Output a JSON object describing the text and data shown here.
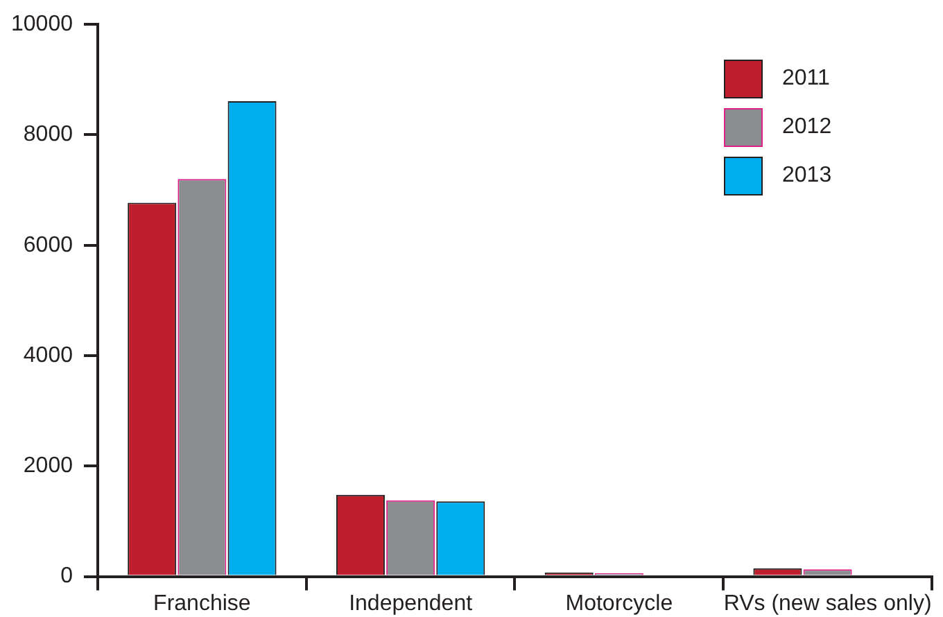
{
  "chart_data": {
    "type": "bar",
    "categories": [
      "Franchise",
      "Independent",
      "Motorcycle",
      "RVs (new sales only)"
    ],
    "series": [
      {
        "name": "2011",
        "color": "#be1e2d",
        "values": [
          6770,
          1480,
          70,
          150
        ]
      },
      {
        "name": "2012",
        "color": "#8c8d90",
        "values": [
          7200,
          1380,
          60,
          130
        ]
      },
      {
        "name": "2013",
        "color": "#00aeef",
        "values": [
          8610,
          1360,
          null,
          null
        ]
      }
    ],
    "ylim": [
      0,
      10000
    ],
    "yticks": [
      0,
      2000,
      4000,
      6000,
      8000,
      10000
    ],
    "grid": false,
    "legend": "top right"
  }
}
